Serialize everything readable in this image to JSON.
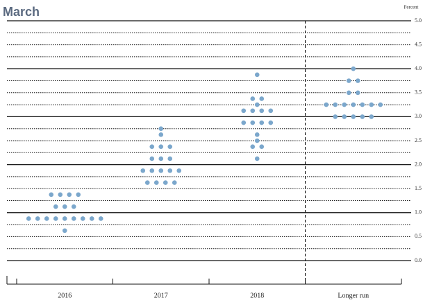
{
  "chart_data": {
    "type": "dot",
    "title": "March",
    "y_axis_label": "Percent",
    "categories": [
      "2016",
      "2017",
      "2018",
      "Longer run"
    ],
    "color": "#7ba7cc",
    "values": [
      [
        0.625,
        0.875,
        0.875,
        0.875,
        0.875,
        0.875,
        0.875,
        0.875,
        0.875,
        0.875,
        1.125,
        1.125,
        1.125,
        1.375,
        1.375,
        1.375,
        1.375
      ],
      [
        1.625,
        1.625,
        1.625,
        1.625,
        1.875,
        1.875,
        1.875,
        1.875,
        1.875,
        2.125,
        2.125,
        2.125,
        2.375,
        2.375,
        2.375,
        2.625,
        2.75
      ],
      [
        2.125,
        2.375,
        2.375,
        2.5,
        2.625,
        2.875,
        2.875,
        2.875,
        2.875,
        3.125,
        3.125,
        3.125,
        3.125,
        3.25,
        3.375,
        3.375,
        3.875
      ],
      [
        3.0,
        3.0,
        3.0,
        3.0,
        3.0,
        3.25,
        3.25,
        3.25,
        3.25,
        3.25,
        3.25,
        3.25,
        3.5,
        3.5,
        3.75,
        3.75,
        4.0
      ]
    ],
    "ylim": [
      0,
      5
    ],
    "yticks": [
      {
        "value": 0,
        "label": "0.0"
      },
      0.5,
      {
        "value": 1,
        "label": "1.0"
      },
      1.5,
      {
        "value": 2,
        "label": "2.0"
      },
      2.5,
      {
        "value": 3,
        "label": "3.0"
      },
      3.5,
      {
        "value": 4,
        "label": "4.0"
      },
      4.5,
      {
        "value": 5,
        "label": "5.0"
      }
    ],
    "grid": true
  }
}
